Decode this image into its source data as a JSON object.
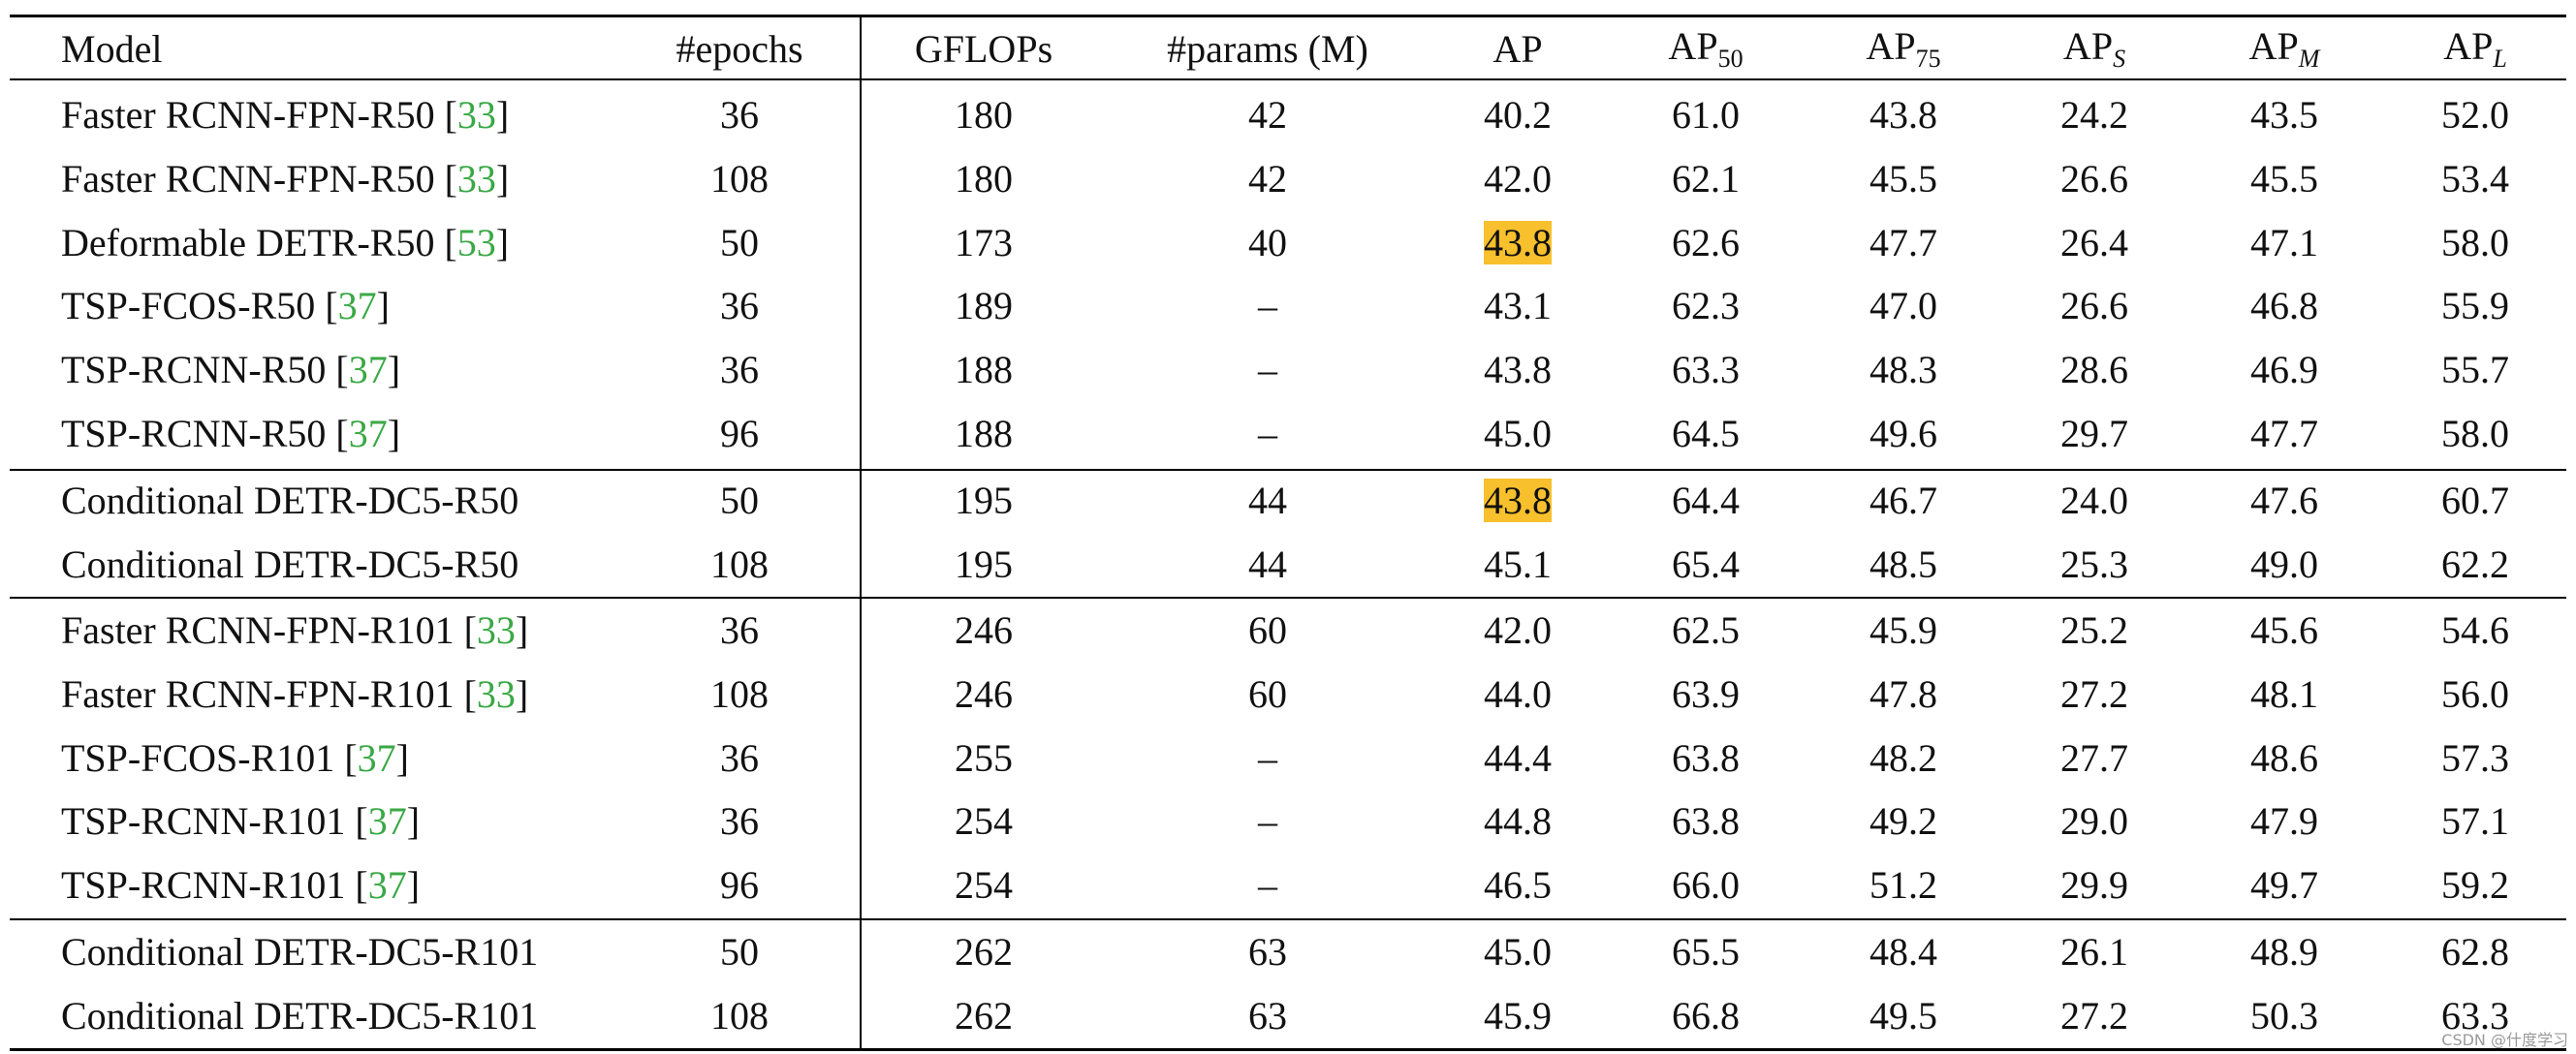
{
  "table": {
    "header": [
      "Model",
      "#epochs",
      "GFLOPs",
      "#params (M)",
      "AP",
      {
        "base": "AP",
        "sub": "50"
      },
      {
        "base": "AP",
        "sub": "75"
      },
      {
        "base": "AP",
        "sub": "S"
      },
      {
        "base": "AP",
        "sub": "M"
      },
      {
        "base": "AP",
        "sub": "L"
      }
    ],
    "groups": [
      {
        "rows": [
          {
            "model": "Faster RCNN-FPN-R50",
            "ref": "33",
            "cells": [
              "36",
              "180",
              "42",
              "40.2",
              "61.0",
              "43.8",
              "24.2",
              "43.5",
              "52.0"
            ]
          },
          {
            "model": "Faster RCNN-FPN-R50",
            "ref": "33",
            "cells": [
              "108",
              "180",
              "42",
              "42.0",
              "62.1",
              "45.5",
              "26.6",
              "45.5",
              "53.4"
            ]
          },
          {
            "model": "Deformable DETR-R50",
            "ref": "53",
            "cells": [
              "50",
              "173",
              "40",
              {
                "text": "43.8",
                "highlight": true
              },
              "62.6",
              "47.7",
              "26.4",
              "47.1",
              "58.0"
            ]
          },
          {
            "model": "TSP-FCOS-R50",
            "ref": "37",
            "cells": [
              "36",
              "189",
              "–",
              "43.1",
              "62.3",
              "47.0",
              "26.6",
              "46.8",
              "55.9"
            ]
          },
          {
            "model": "TSP-RCNN-R50",
            "ref": "37",
            "cells": [
              "36",
              "188",
              "–",
              "43.8",
              "63.3",
              "48.3",
              "28.6",
              "46.9",
              "55.7"
            ]
          },
          {
            "model": "TSP-RCNN-R50",
            "ref": "37",
            "cells": [
              "96",
              "188",
              "–",
              "45.0",
              "64.5",
              "49.6",
              "29.7",
              "47.7",
              "58.0"
            ]
          }
        ]
      },
      {
        "rows": [
          {
            "model": "Conditional DETR-DC5-R50",
            "cells": [
              "50",
              "195",
              "44",
              {
                "text": "43.8",
                "highlight": true
              },
              "64.4",
              "46.7",
              "24.0",
              "47.6",
              "60.7"
            ]
          },
          {
            "model": "Conditional DETR-DC5-R50",
            "cells": [
              "108",
              "195",
              "44",
              "45.1",
              "65.4",
              "48.5",
              "25.3",
              "49.0",
              "62.2"
            ]
          }
        ]
      },
      {
        "rows": [
          {
            "model": "Faster RCNN-FPN-R101",
            "ref": "33",
            "cells": [
              "36",
              "246",
              "60",
              "42.0",
              "62.5",
              "45.9",
              "25.2",
              "45.6",
              "54.6"
            ]
          },
          {
            "model": "Faster RCNN-FPN-R101",
            "ref": "33",
            "cells": [
              "108",
              "246",
              "60",
              "44.0",
              "63.9",
              "47.8",
              "27.2",
              "48.1",
              "56.0"
            ]
          },
          {
            "model": "TSP-FCOS-R101",
            "ref": "37",
            "cells": [
              "36",
              "255",
              "–",
              "44.4",
              "63.8",
              "48.2",
              "27.7",
              "48.6",
              "57.3"
            ]
          },
          {
            "model": "TSP-RCNN-R101",
            "ref": "37",
            "cells": [
              "36",
              "254",
              "–",
              "44.8",
              "63.8",
              "49.2",
              "29.0",
              "47.9",
              "57.1"
            ]
          },
          {
            "model": "TSP-RCNN-R101",
            "ref": "37",
            "cells": [
              "96",
              "254",
              "–",
              "46.5",
              "66.0",
              "51.2",
              "29.9",
              "49.7",
              "59.2"
            ]
          }
        ]
      },
      {
        "rows": [
          {
            "model": "Conditional DETR-DC5-R101",
            "cells": [
              "50",
              "262",
              "63",
              "45.0",
              "65.5",
              "48.4",
              "26.1",
              "48.9",
              "62.8"
            ]
          },
          {
            "model": "Conditional DETR-DC5-R101",
            "cells": [
              "108",
              "262",
              "63",
              "45.9",
              "66.8",
              "49.5",
              "27.2",
              "50.3",
              "63.3"
            ]
          }
        ]
      }
    ]
  },
  "watermark": "CSDN @什度学习"
}
